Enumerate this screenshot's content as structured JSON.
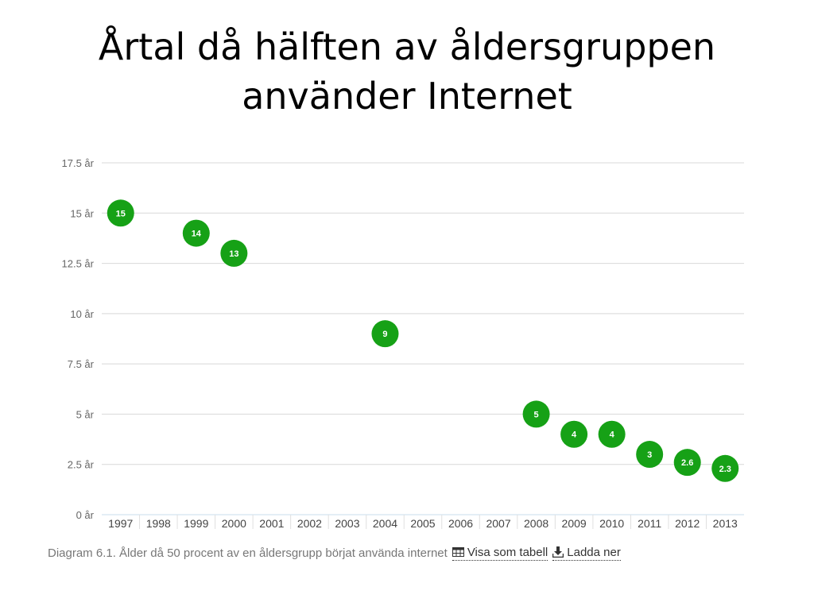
{
  "slide": {
    "title_line1": "Årtal då hälften av åldersgruppen",
    "title_line2": "använder Internet"
  },
  "caption": {
    "text": "Diagram 6.1. Ålder då 50 procent av en åldersgrupp börjat använda internet",
    "table_link": "Visa som tabell",
    "download_link": "Ladda ner",
    "table_icon": "table-icon",
    "download_icon": "download-icon"
  },
  "chart_data": {
    "type": "scatter",
    "categories": [
      "1997",
      "1998",
      "1999",
      "2000",
      "2001",
      "2002",
      "2003",
      "2004",
      "2005",
      "2006",
      "2007",
      "2008",
      "2009",
      "2010",
      "2011",
      "2012",
      "2013"
    ],
    "points": [
      {
        "x": "1997",
        "y": 15,
        "label": "15"
      },
      {
        "x": "1999",
        "y": 14,
        "label": "14"
      },
      {
        "x": "2000",
        "y": 13,
        "label": "13"
      },
      {
        "x": "2004",
        "y": 9,
        "label": "9"
      },
      {
        "x": "2008",
        "y": 5,
        "label": "5"
      },
      {
        "x": "2009",
        "y": 4,
        "label": "4"
      },
      {
        "x": "2010",
        "y": 4,
        "label": "4"
      },
      {
        "x": "2011",
        "y": 3,
        "label": "3"
      },
      {
        "x": "2012",
        "y": 2.6,
        "label": "2.6"
      },
      {
        "x": "2013",
        "y": 2.3,
        "label": "2.3"
      }
    ],
    "yticks": [
      {
        "value": 0,
        "label": "0 år"
      },
      {
        "value": 2.5,
        "label": "2.5 år"
      },
      {
        "value": 5,
        "label": "5 år"
      },
      {
        "value": 7.5,
        "label": "7.5 år"
      },
      {
        "value": 10,
        "label": "10 år"
      },
      {
        "value": 12.5,
        "label": "12.5 år"
      },
      {
        "value": 15,
        "label": "15 år"
      },
      {
        "value": 17.5,
        "label": "17.5 år"
      }
    ],
    "ylim": [
      0,
      17.5
    ],
    "grid": true,
    "colors": {
      "marker": "#16a116",
      "grid": "#d8d8d8",
      "axis": "#c8dcee"
    }
  }
}
